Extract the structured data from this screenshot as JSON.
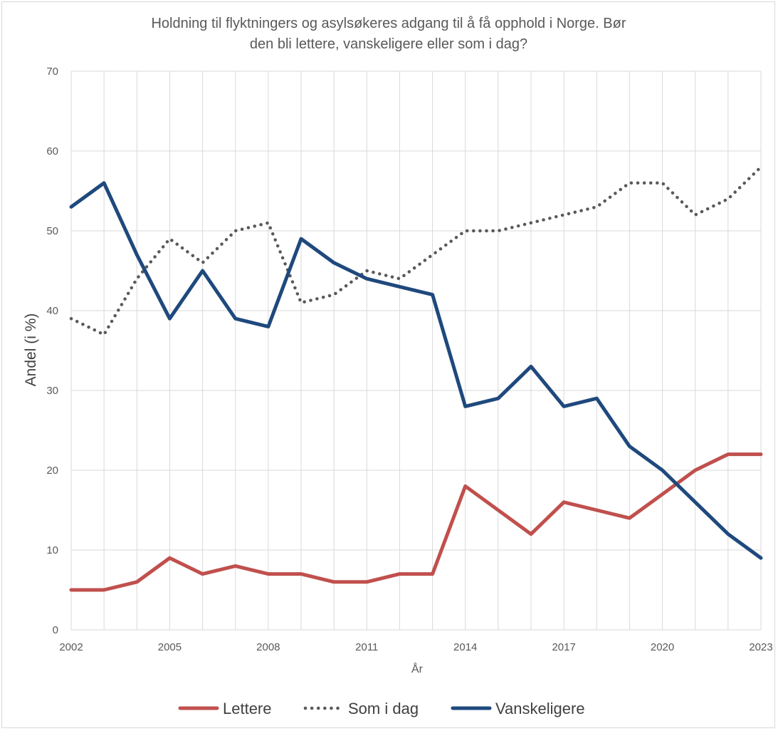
{
  "chart_data": {
    "type": "line",
    "title_lines": [
      "Holdning  til flyktningers og asylsøkeres adgang til å få opphold i Norge. Bør",
      "den bli lettere, vanskeligere eller som i dag?"
    ],
    "xlabel": "År",
    "ylabel": "Andel  (i %)",
    "ylim": [
      0,
      70
    ],
    "yticks": [
      0,
      10,
      20,
      30,
      40,
      50,
      60,
      70
    ],
    "xlim": [
      2002,
      2023
    ],
    "xticks": [
      2002,
      2005,
      2008,
      2011,
      2014,
      2017,
      2020,
      2023
    ],
    "grid": true,
    "legend_position": "bottom",
    "x": [
      2002,
      2003,
      2004,
      2005,
      2006,
      2007,
      2008,
      2009,
      2010,
      2011,
      2012,
      2013,
      2014,
      2015,
      2016,
      2017,
      2018,
      2019,
      2020,
      2021,
      2022,
      2023
    ],
    "series": [
      {
        "name": "Lettere",
        "color": "#c0504d",
        "style": "solid",
        "values": [
          5,
          5,
          6,
          9,
          7,
          8,
          7,
          7,
          6,
          6,
          7,
          7,
          18,
          15,
          12,
          16,
          15,
          14,
          17,
          20,
          22,
          22
        ]
      },
      {
        "name": "Som i dag",
        "color": "#595959",
        "style": "dotted",
        "values": [
          39,
          37,
          44,
          49,
          46,
          50,
          51,
          41,
          42,
          45,
          44,
          47,
          50,
          50,
          51,
          52,
          53,
          56,
          56,
          52,
          54,
          58
        ]
      },
      {
        "name": "Vanskeligere",
        "color": "#1f497d",
        "style": "solid",
        "values": [
          53,
          56,
          47,
          39,
          45,
          39,
          38,
          49,
          46,
          44,
          43,
          42,
          28,
          29,
          33,
          28,
          29,
          23,
          20,
          16,
          12,
          9
        ]
      }
    ]
  }
}
